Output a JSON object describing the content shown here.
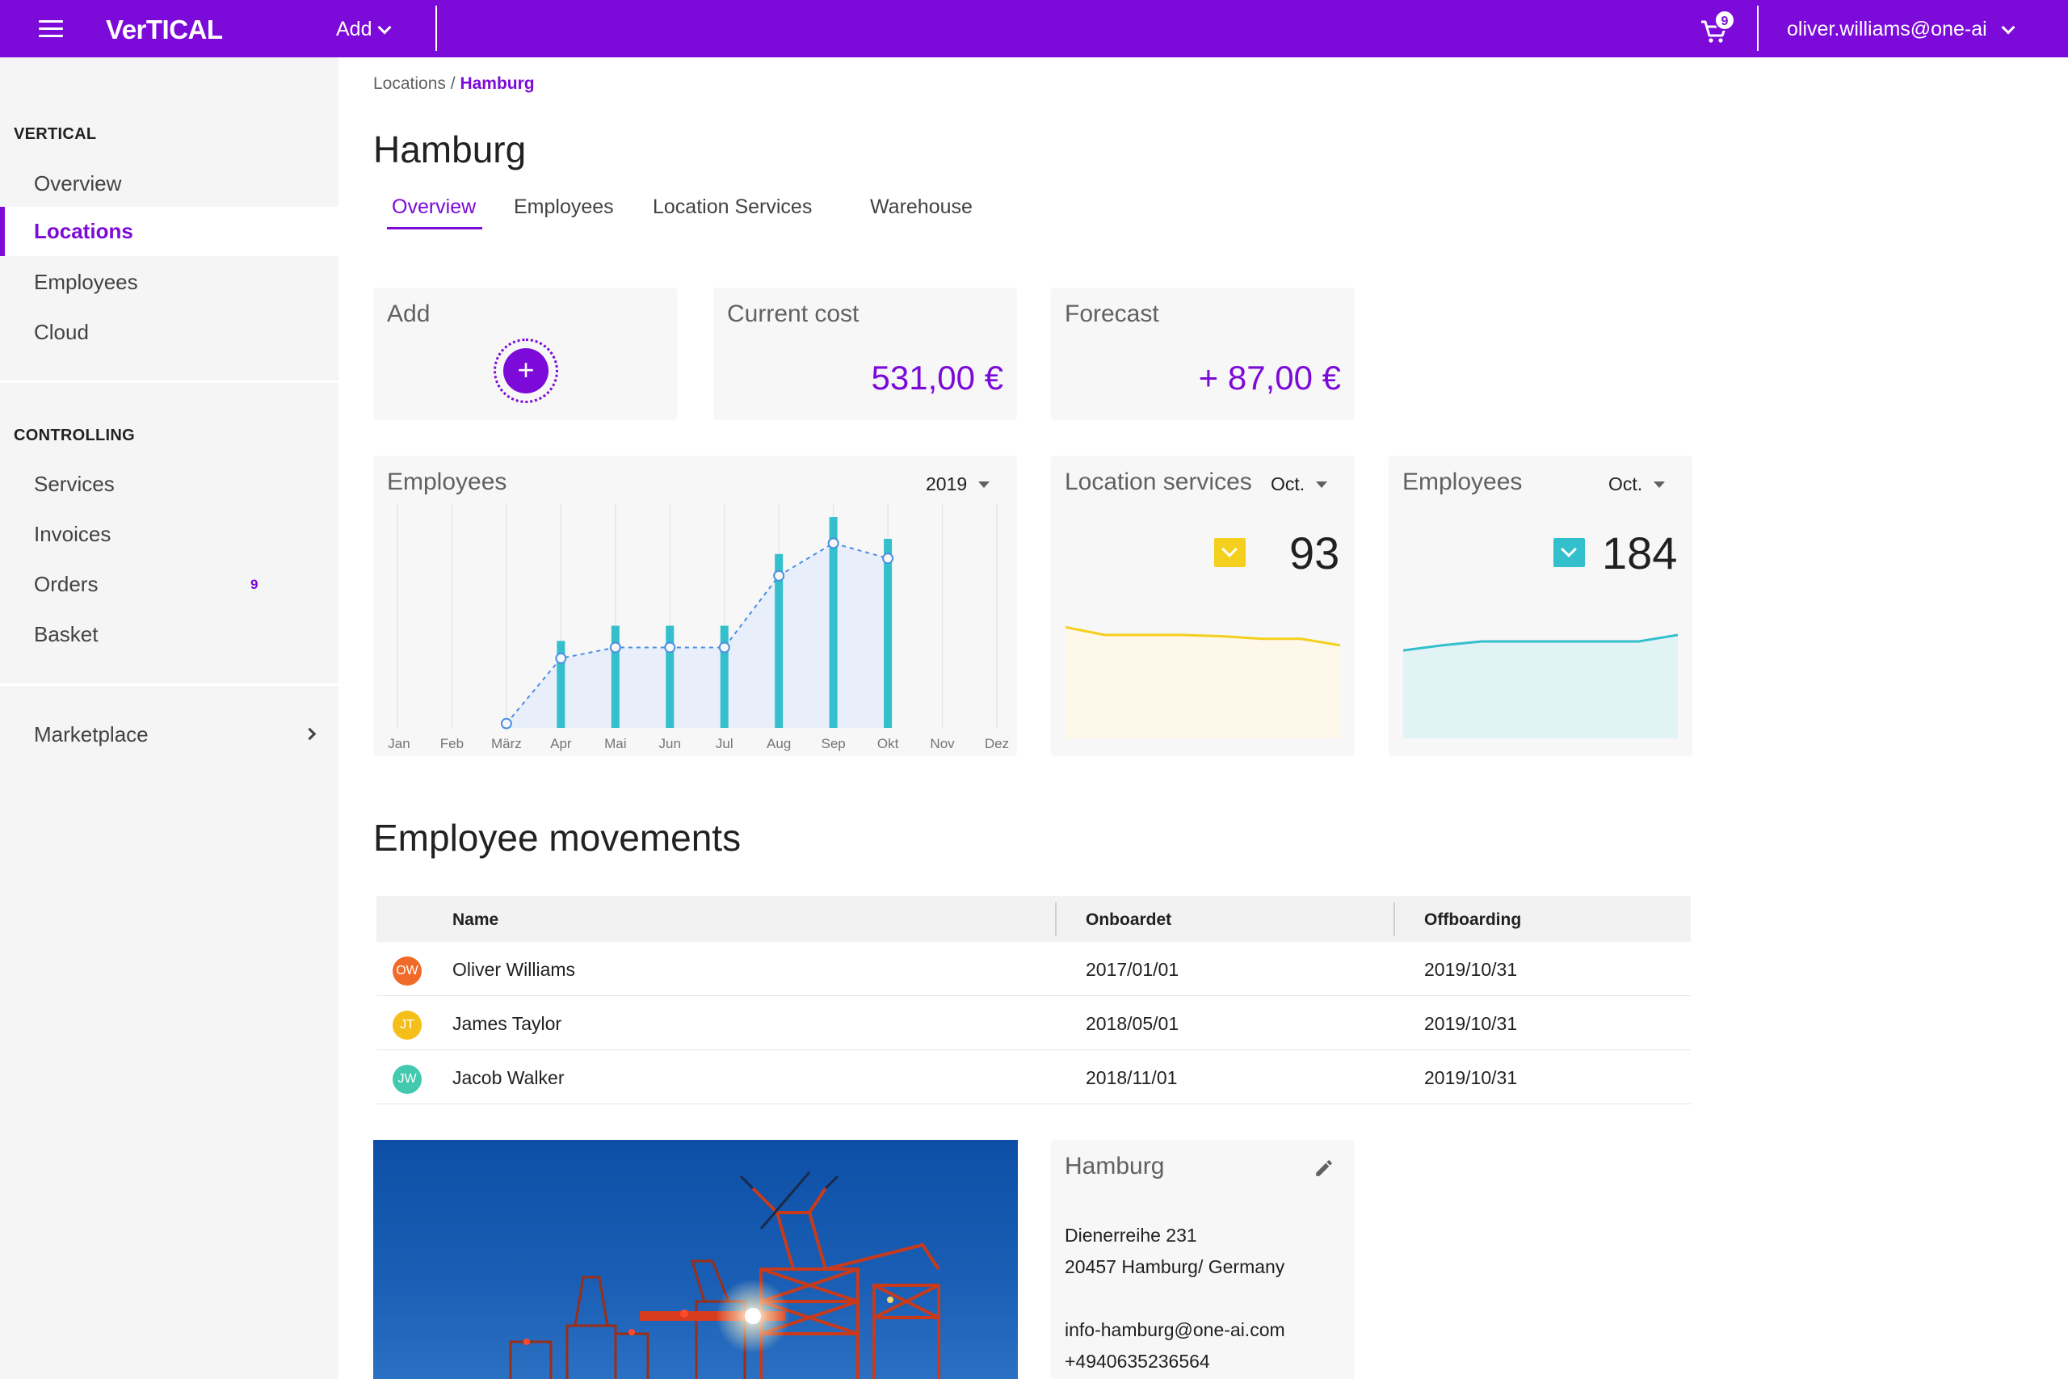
{
  "header": {
    "logo": "VerTICAL",
    "add_label": "Add",
    "cart_count": "9",
    "user": "oliver.williams@one-ai"
  },
  "sidebar": {
    "section1": "VERTICAL",
    "items1": [
      "Overview",
      "Locations",
      "Employees",
      "Cloud"
    ],
    "section2": "CONTROLLING",
    "items2": [
      "Services",
      "Invoices",
      "Orders",
      "Basket"
    ],
    "orders_badge": "9",
    "marketplace": "Marketplace",
    "active": "Locations"
  },
  "breadcrumb": {
    "parent": "Locations",
    "separator": "/",
    "current": "Hamburg"
  },
  "page": {
    "title": "Hamburg",
    "tabs": [
      "Overview",
      "Employees",
      "Location Services",
      "Warehouse"
    ],
    "active_tab": "Overview"
  },
  "cards": {
    "add_title": "Add",
    "cost_title": "Current cost",
    "cost_value": "531,00 €",
    "forecast_title": "Forecast",
    "forecast_value": "+ 87,00 €"
  },
  "employees_chart": {
    "title": "Employees",
    "year": "2019"
  },
  "location_services": {
    "title": "Location services",
    "month": "Oct.",
    "value": "93",
    "color": "#f5cf1d"
  },
  "employees_kpi": {
    "title": "Employees",
    "month": "Oct.",
    "value": "184",
    "color": "#33bfcc"
  },
  "chart_data": [
    {
      "type": "bar",
      "categories": [
        "Jan",
        "Feb",
        "März",
        "Apr",
        "Mai",
        "Jun",
        "Jul",
        "Aug",
        "Sep",
        "Okt",
        "Nov",
        "Dez"
      ],
      "series": [
        {
          "values": [
            null,
            null,
            null,
            40,
            47,
            47,
            47,
            80,
            97,
            87,
            null,
            null
          ]
        },
        {
          "values": [
            null,
            null,
            2,
            32,
            37,
            37,
            37,
            70,
            85,
            78,
            null,
            null
          ]
        }
      ],
      "colors": [
        "#33bfcc",
        "#4a90e2"
      ],
      "ylim": [
        0,
        100
      ],
      "grid": true
    },
    {
      "type": "area",
      "values": [
        86,
        80,
        80,
        80,
        79,
        77,
        77,
        72
      ],
      "ylim": [
        0,
        100
      ],
      "color": "#f5cf1d"
    },
    {
      "type": "area",
      "values": [
        68,
        72,
        75,
        75,
        75,
        75,
        75,
        80
      ],
      "ylim": [
        0,
        100
      ],
      "color": "#33bfcc"
    }
  ],
  "movements": {
    "title": "Employee movements",
    "columns": [
      "Name",
      "Onboardet",
      "Offboarding"
    ],
    "rows": [
      {
        "initials": "OW",
        "name": "Oliver Williams",
        "onboard": "2017/01/01",
        "offboard": "2019/10/31",
        "color": "#ef5a12"
      },
      {
        "initials": "JT",
        "name": "James Taylor",
        "onboard": "2018/05/01",
        "offboard": "2019/10/31",
        "color": "#f5b800"
      },
      {
        "initials": "JW",
        "name": "Jacob Walker",
        "onboard": "2018/11/01",
        "offboard": "2019/10/31",
        "color": "#2ec4a6"
      }
    ]
  },
  "location_card": {
    "title": "Hamburg",
    "street": "Dienerreihe 231",
    "city": "20457 Hamburg/ Germany",
    "email": "info-hamburg@one-ai.com",
    "phone": "+4940635236564"
  },
  "colors": {
    "brand": "#7c0ad9",
    "sidebar_bg": "#f5f5f5",
    "card_bg": "#f7f7f7"
  }
}
